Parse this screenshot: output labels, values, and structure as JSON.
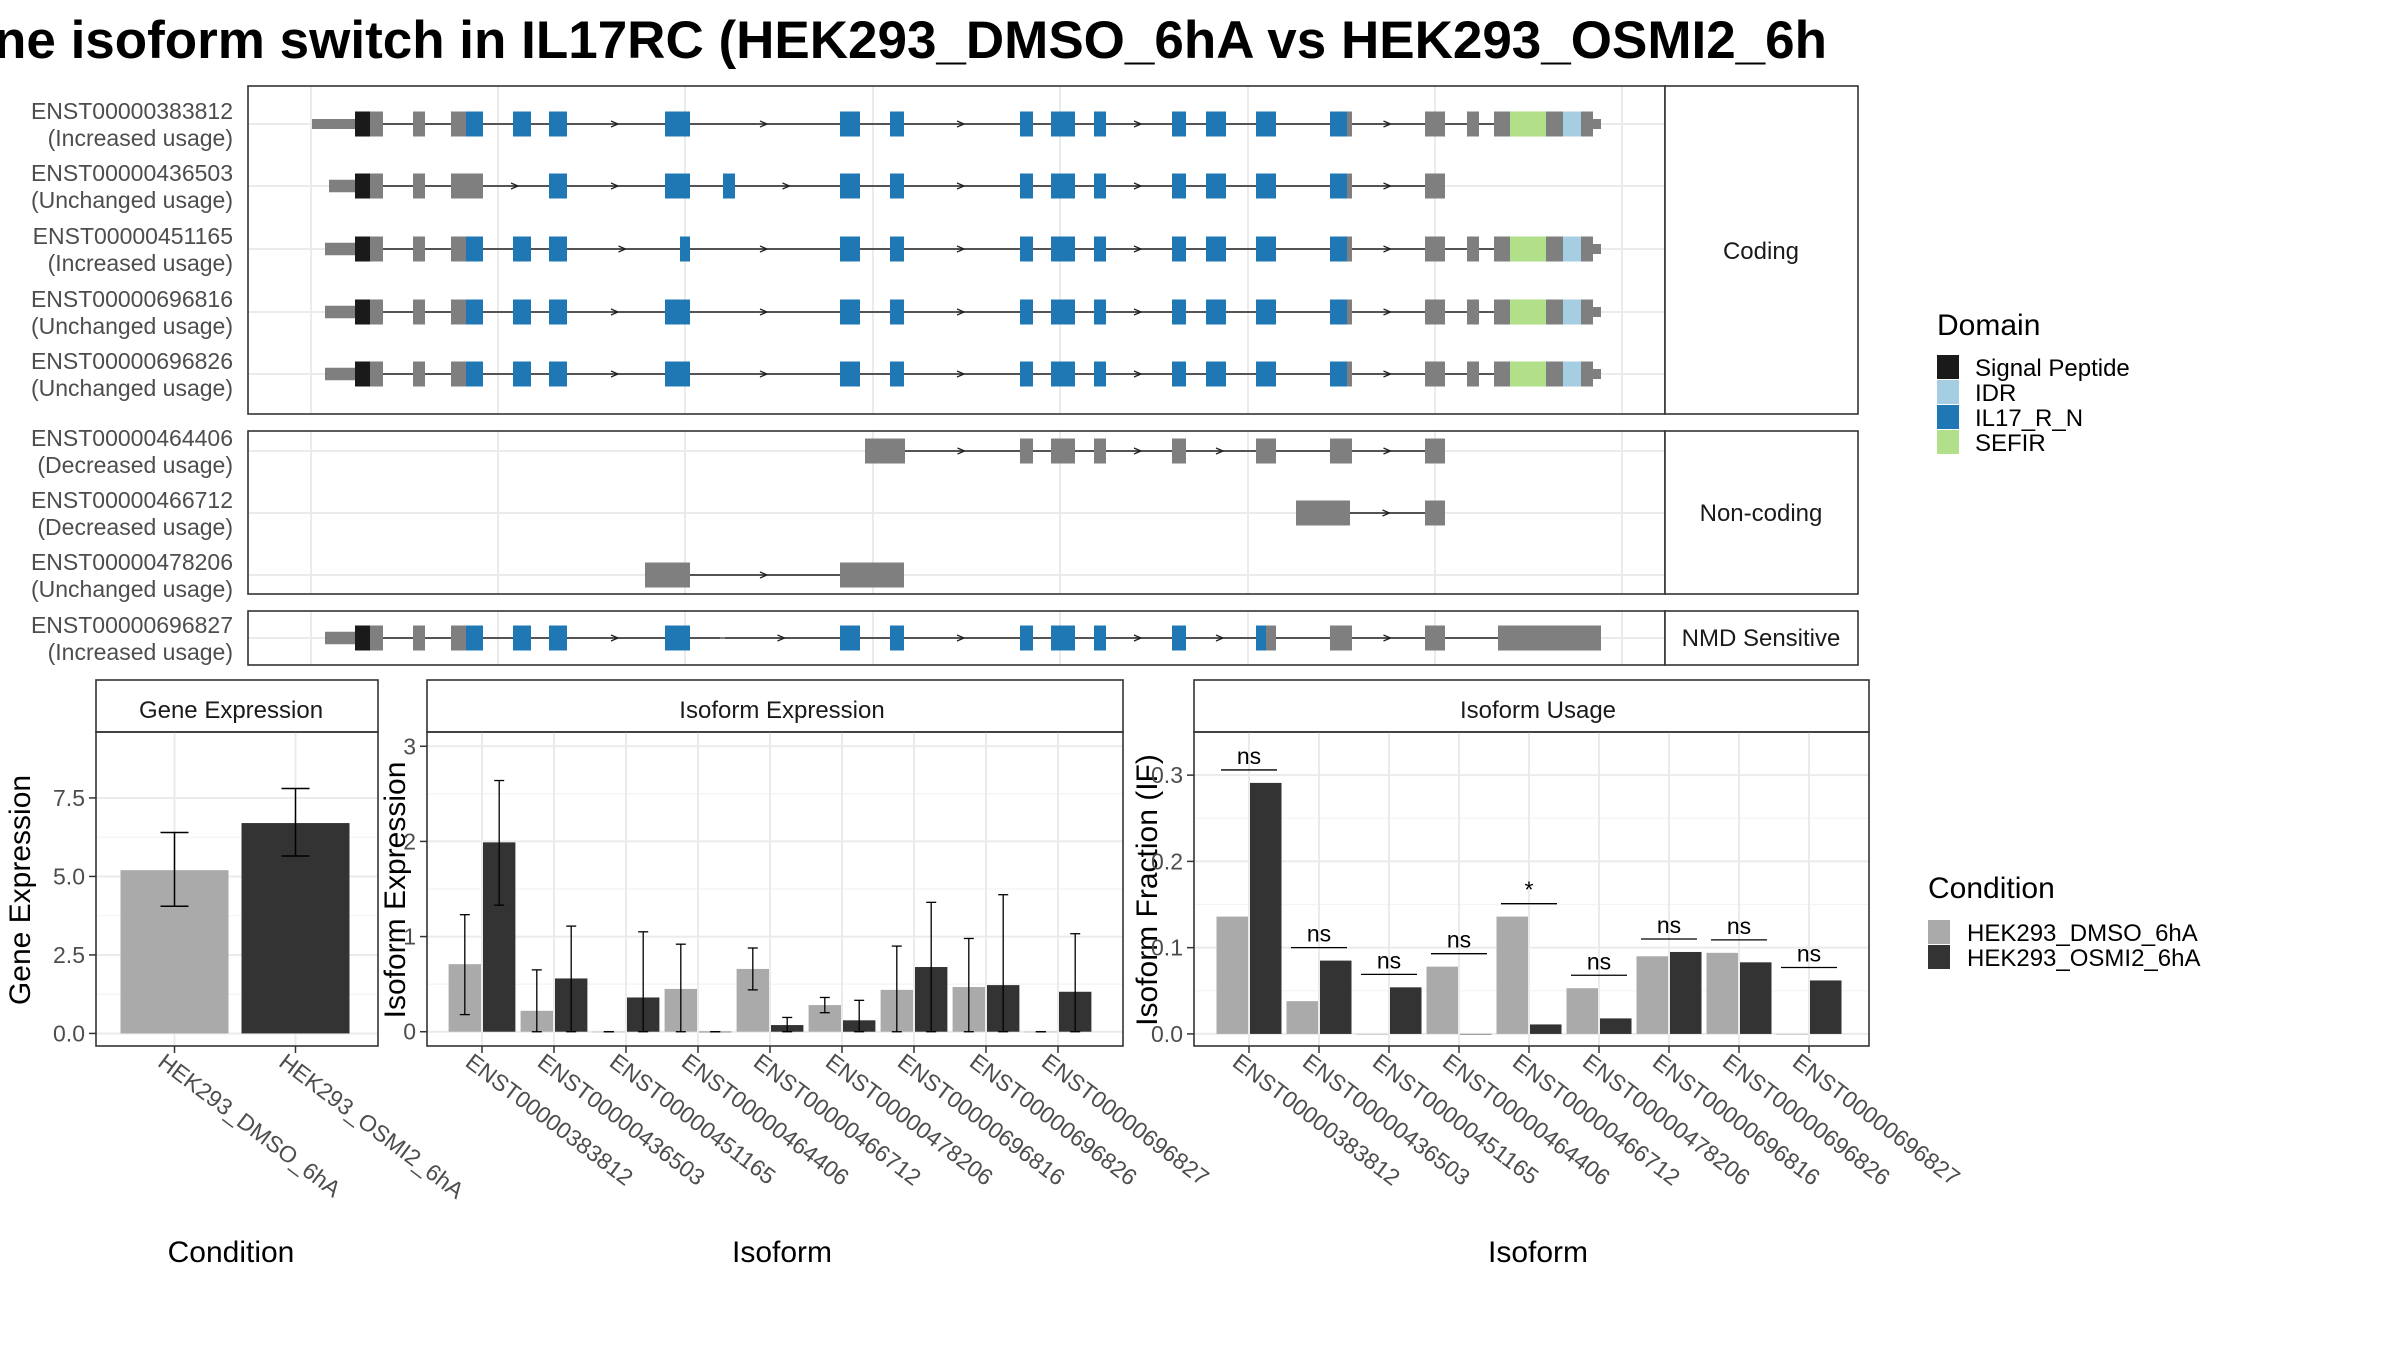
{
  "title": "ne isoform switch in IL17RC (HEK293_DMSO_6hA vs HEK293_OSMI2_6h",
  "colors": {
    "signal_peptide": "#1a1a1a",
    "idr": "#a6cee3",
    "il17_r_n": "#1f78b4",
    "sefir": "#b2df8a",
    "exon_grey": "#7f7f7f",
    "dmso": "#aaaaaa",
    "osmi2": "#333333",
    "grid": "#ebebeb",
    "frame": "#333333"
  },
  "structure": {
    "groups": [
      {
        "label": "Coding",
        "transcripts": [
          {
            "id": "ENST00000383812",
            "usage": "(Increased usage)"
          },
          {
            "id": "ENST00000436503",
            "usage": "(Unchanged usage)"
          },
          {
            "id": "ENST00000451165",
            "usage": "(Increased usage)"
          },
          {
            "id": "ENST00000696816",
            "usage": "(Unchanged usage)"
          },
          {
            "id": "ENST00000696826",
            "usage": "(Unchanged usage)"
          }
        ]
      },
      {
        "label": "Non-coding",
        "transcripts": [
          {
            "id": "ENST00000464406",
            "usage": "(Decreased usage)"
          },
          {
            "id": "ENST00000466712",
            "usage": "(Decreased usage)"
          },
          {
            "id": "ENST00000478206",
            "usage": "(Unchanged usage)"
          }
        ]
      },
      {
        "label": "NMD Sensitive",
        "transcripts": [
          {
            "id": "ENST00000696827",
            "usage": "(Increased usage)"
          }
        ]
      }
    ]
  },
  "legend_domain": {
    "title": "Domain",
    "items": [
      {
        "label": "Signal Peptide",
        "color": "#1a1a1a"
      },
      {
        "label": "IDR",
        "color": "#a6cee3"
      },
      {
        "label": "IL17_R_N",
        "color": "#1f78b4"
      },
      {
        "label": "SEFIR",
        "color": "#b2df8a"
      }
    ]
  },
  "legend_condition": {
    "title": "Condition",
    "items": [
      {
        "label": "HEK293_DMSO_6hA",
        "color": "#aaaaaa"
      },
      {
        "label": "HEK293_OSMI2_6hA",
        "color": "#333333"
      }
    ]
  },
  "chart_data": [
    {
      "type": "bar",
      "title": "Gene Expression",
      "xlabel": "Condition",
      "ylabel": "Gene Expression",
      "categories": [
        "HEK293_DMSO_6hA",
        "HEK293_OSMI2_6hA"
      ],
      "values": [
        5.2,
        6.7
      ],
      "error": [
        [
          4.05,
          6.4
        ],
        [
          5.65,
          7.8
        ]
      ],
      "ylim": [
        -0.4,
        9.6
      ],
      "yticks": [
        0.0,
        2.5,
        5.0,
        7.5
      ],
      "ytick_labels": [
        "0.0",
        "2.5",
        "5.0",
        "7.5"
      ],
      "grid": true
    },
    {
      "type": "bar",
      "title": "Isoform Expression",
      "xlabel": "Isoform",
      "ylabel": "Isoform Expression",
      "categories": [
        "ENST00000383812",
        "ENST00000436503",
        "ENST00000451165",
        "ENST00000464406",
        "ENST00000466712",
        "ENST00000478206",
        "ENST00000696816",
        "ENST00000696826",
        "ENST00000696827"
      ],
      "series": [
        {
          "name": "HEK293_DMSO_6hA",
          "values": [
            0.71,
            0.22,
            0.0,
            0.45,
            0.66,
            0.28,
            0.44,
            0.47,
            0.0
          ],
          "error": [
            [
              0.18,
              1.23
            ],
            [
              0.0,
              0.65
            ],
            [
              0.0,
              0.0
            ],
            [
              0.0,
              0.92
            ],
            [
              0.44,
              0.88
            ],
            [
              0.2,
              0.36
            ],
            [
              0.0,
              0.9
            ],
            [
              0.0,
              0.98
            ],
            [
              0.0,
              0.0
            ]
          ]
        },
        {
          "name": "HEK293_OSMI2_6hA",
          "values": [
            1.99,
            0.56,
            0.36,
            0.0,
            0.07,
            0.12,
            0.68,
            0.49,
            0.42
          ],
          "error": [
            [
              1.33,
              2.64
            ],
            [
              0.0,
              1.11
            ],
            [
              0.0,
              1.05
            ],
            [
              0.0,
              0.0
            ],
            [
              0.0,
              0.15
            ],
            [
              0.0,
              0.33
            ],
            [
              0.0,
              1.36
            ],
            [
              0.0,
              1.44
            ],
            [
              0.0,
              1.03
            ]
          ]
        }
      ],
      "ylim": [
        -0.15,
        3.15
      ],
      "yticks": [
        0,
        1,
        2,
        3
      ],
      "ytick_labels": [
        "0",
        "1",
        "2",
        "3"
      ],
      "grid": true
    },
    {
      "type": "bar",
      "title": "Isoform Usage",
      "xlabel": "Isoform",
      "ylabel": "Isoform Fraction (IF)",
      "categories": [
        "ENST00000383812",
        "ENST00000436503",
        "ENST00000451165",
        "ENST00000464406",
        "ENST00000466712",
        "ENST00000478206",
        "ENST00000696816",
        "ENST00000696826",
        "ENST00000696827"
      ],
      "series": [
        {
          "name": "HEK293_DMSO_6hA",
          "values": [
            0.136,
            0.038,
            0.0,
            0.078,
            0.136,
            0.053,
            0.09,
            0.094,
            0.0
          ]
        },
        {
          "name": "HEK293_OSMI2_6hA",
          "values": [
            0.291,
            0.085,
            0.054,
            0.0,
            0.011,
            0.018,
            0.095,
            0.083,
            0.062
          ]
        }
      ],
      "significance": [
        "ns",
        "ns",
        "ns",
        "ns",
        "*",
        "ns",
        "ns",
        "ns",
        "ns"
      ],
      "sig_y": [
        0.306,
        0.1,
        0.069,
        0.093,
        0.151,
        0.068,
        0.11,
        0.109,
        0.077
      ],
      "ylim": [
        -0.014,
        0.35
      ],
      "yticks": [
        0.0,
        0.1,
        0.2,
        0.3
      ],
      "ytick_labels": [
        "0.0",
        "0.1",
        "0.2",
        "0.3"
      ],
      "grid": true
    }
  ]
}
